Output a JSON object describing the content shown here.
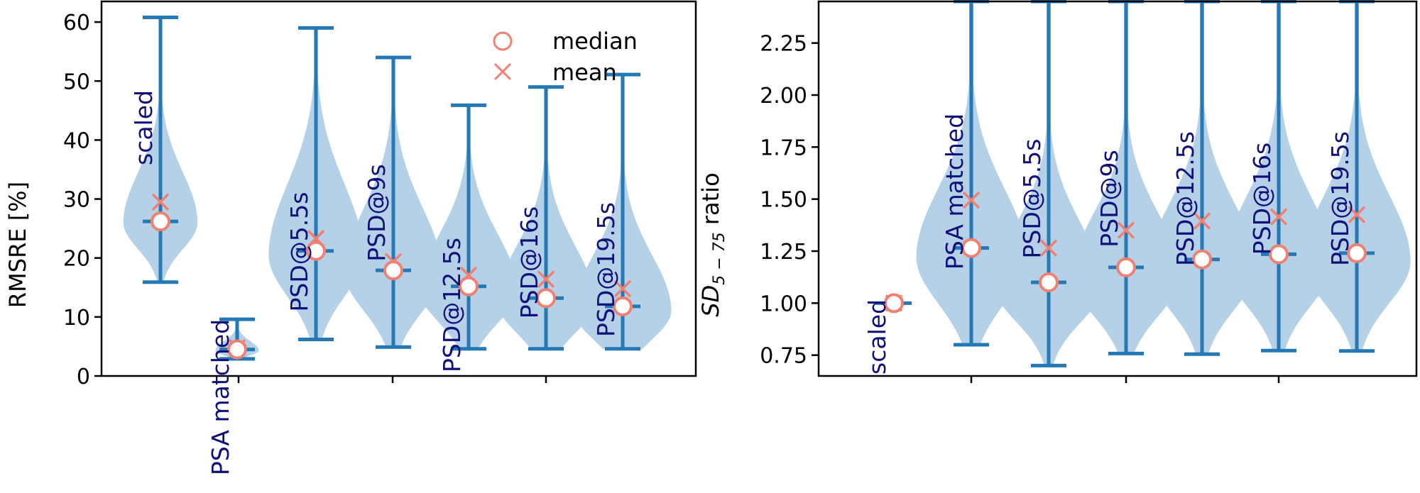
{
  "colors": {
    "violin_fill": "#b5d1e8",
    "whisker": "#2378b5",
    "marker": "#f08072",
    "category_text": "#10107a",
    "axis": "#000000"
  },
  "legend": {
    "placement": "top-right",
    "items": [
      {
        "label": "median",
        "marker": "circle"
      },
      {
        "label": "mean",
        "marker": "x"
      }
    ]
  },
  "chart_data": [
    {
      "type": "violin",
      "ylabel": "RMSRE [%]",
      "ylim": [
        0,
        63.5
      ],
      "yticks": [
        0,
        10,
        20,
        30,
        40,
        50,
        60
      ],
      "ytick_labels": [
        "0",
        "10",
        "20",
        "30",
        "40",
        "50",
        "60"
      ],
      "grid": false,
      "series": [
        {
          "label": "scaled",
          "min": 15.9,
          "max": 60.8,
          "median": 26.2,
          "mean": 29.5
        },
        {
          "label": "PSA matched",
          "min": 2.9,
          "max": 9.6,
          "median": 4.5,
          "mean": 4.8
        },
        {
          "label": "PSD@5.5s",
          "min": 6.2,
          "max": 59.0,
          "median": 21.2,
          "mean": 23.3
        },
        {
          "label": "PSD@9s",
          "min": 4.9,
          "max": 54.0,
          "median": 17.9,
          "mean": 19.4
        },
        {
          "label": "PSD@12.5s",
          "min": 4.6,
          "max": 45.9,
          "median": 15.2,
          "mean": 17.1
        },
        {
          "label": "PSD@16s",
          "min": 4.6,
          "max": 49.0,
          "median": 13.2,
          "mean": 16.4
        },
        {
          "label": "PSD@19.5s",
          "min": 4.6,
          "max": 51.1,
          "median": 11.8,
          "mean": 14.8
        }
      ]
    },
    {
      "type": "violin",
      "ylabel": "SD ratio",
      "ylabel_main": "SD",
      "ylabel_sub": "5 − 75",
      "ylabel_rest": " ratio",
      "ylim": [
        0.65,
        2.45
      ],
      "yticks": [
        0.75,
        1.0,
        1.25,
        1.5,
        1.75,
        2.0,
        2.25
      ],
      "ytick_labels": [
        "0.75",
        "1.00",
        "1.25",
        "1.50",
        "1.75",
        "2.00",
        "2.25"
      ],
      "grid": false,
      "series": [
        {
          "label": "scaled",
          "min": 1.0,
          "max": 1.0,
          "median": 1.0,
          "mean": 1.0
        },
        {
          "label": "PSA matched",
          "min": 0.8,
          "max": 2.45,
          "median": 1.265,
          "mean": 1.495
        },
        {
          "label": "PSD@5.5s",
          "min": 0.7,
          "max": 2.45,
          "median": 1.1,
          "mean": 1.265
        },
        {
          "label": "PSD@9s",
          "min": 0.758,
          "max": 2.45,
          "median": 1.172,
          "mean": 1.35
        },
        {
          "label": "PSD@12.5s",
          "min": 0.755,
          "max": 2.45,
          "median": 1.21,
          "mean": 1.395
        },
        {
          "label": "PSD@16s",
          "min": 0.772,
          "max": 2.45,
          "median": 1.235,
          "mean": 1.415
        },
        {
          "label": "PSD@19.5s",
          "min": 0.77,
          "max": 2.45,
          "median": 1.24,
          "mean": 1.425
        }
      ]
    }
  ]
}
